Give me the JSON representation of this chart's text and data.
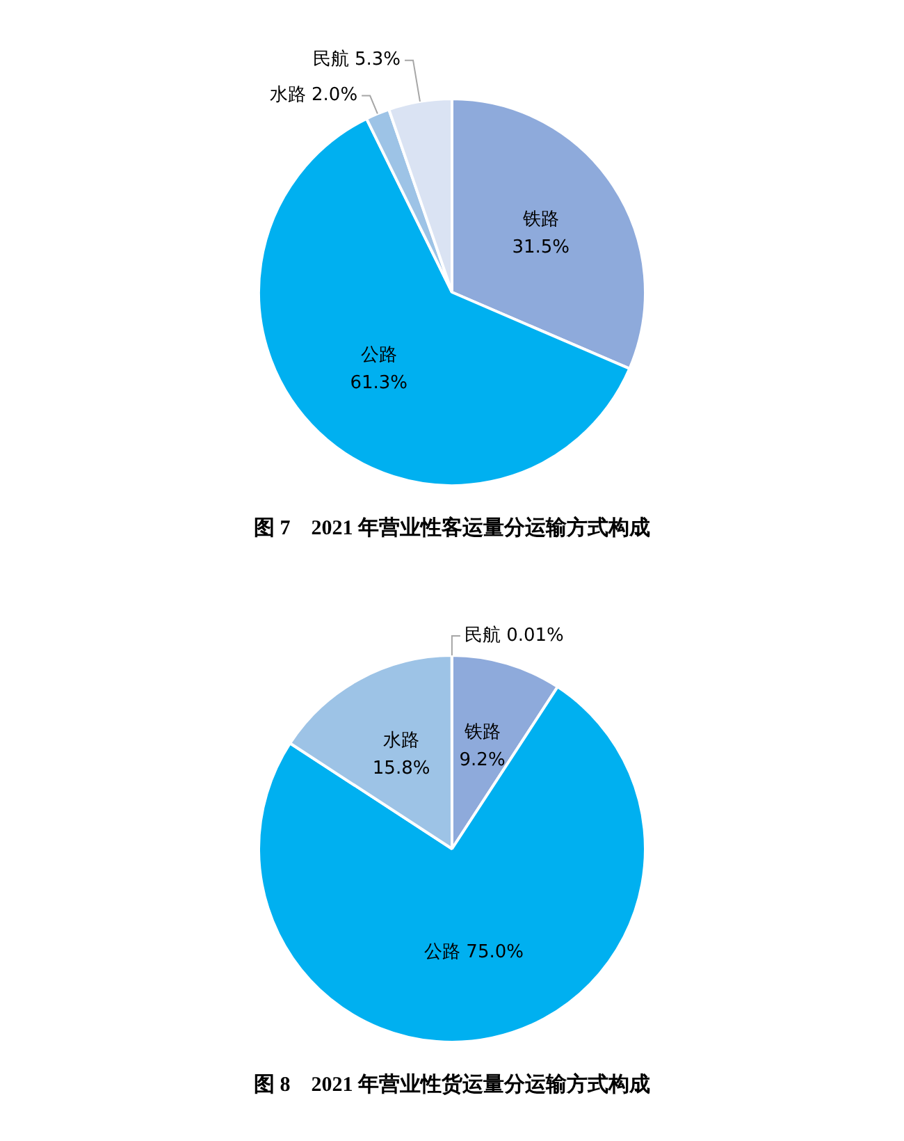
{
  "chart_data": [
    {
      "type": "pie",
      "title": "图 7　2021 年营业性客运量分运输方式构成",
      "categories": [
        "铁路",
        "公路",
        "水路",
        "民航"
      ],
      "values": [
        31.5,
        61.3,
        2.0,
        5.3
      ],
      "colors": [
        "#8eaadb",
        "#00b0f0",
        "#9dc3e6",
        "#dae3f3"
      ],
      "value_labels": [
        "31.5%",
        "61.3%",
        "2.0%",
        "5.3%"
      ]
    },
    {
      "type": "pie",
      "title": "图 8　2021 年营业性货运量分运输方式构成",
      "categories": [
        "铁路",
        "公路",
        "水路",
        "民航"
      ],
      "values": [
        9.2,
        75.0,
        15.8,
        0.01
      ],
      "colors": [
        "#8eaadb",
        "#00b0f0",
        "#9dc3e6",
        "#dae3f3"
      ],
      "value_labels": [
        "9.2%",
        "75.0%",
        "15.8%",
        "0.01%"
      ]
    }
  ]
}
